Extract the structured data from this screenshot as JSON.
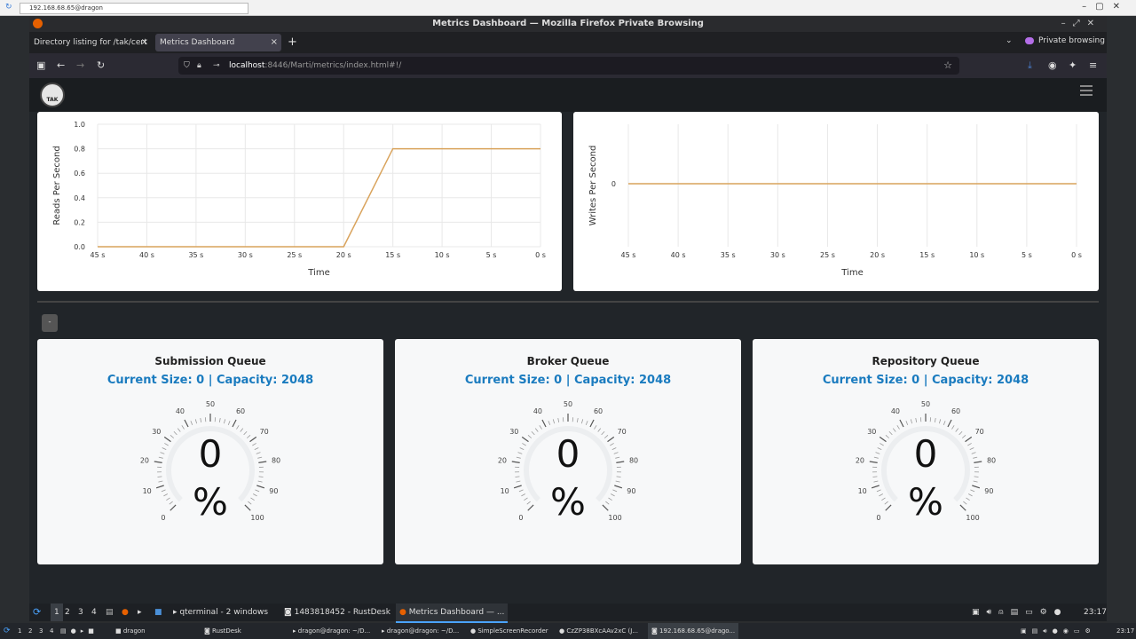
{
  "remote": {
    "address": "192.168.68.65@dragon"
  },
  "window": {
    "title": "Metrics Dashboard — Mozilla Firefox Private Browsing"
  },
  "tabs": [
    {
      "label": "Directory listing for /tak/cert"
    },
    {
      "label": "Metrics Dashboard"
    }
  ],
  "new_tab_icon": "plus-icon",
  "private": {
    "label": "Private browsing"
  },
  "url": {
    "host": "localhost",
    "path": ":8446/Marti/metrics/index.html#!/"
  },
  "logo": {
    "text": "TAK"
  },
  "charts_text": {
    "left_ylabel": "Reads Per Second",
    "right_ylabel": "Writes Per Second",
    "xlabel": "Time"
  },
  "chart_data": [
    {
      "type": "line",
      "ylabel": "Reads Per Second",
      "xlabel": "Time",
      "x_ticks": [
        "45 s",
        "40 s",
        "35 s",
        "30 s",
        "25 s",
        "20 s",
        "15 s",
        "10 s",
        "5 s",
        "0 s"
      ],
      "y_ticks": [
        "0.0",
        "0.2",
        "0.4",
        "0.6",
        "0.8",
        "1.0"
      ],
      "ylim": [
        0,
        1.0
      ],
      "series": [
        {
          "x": [
            45,
            20,
            15,
            0
          ],
          "y": [
            0,
            0,
            0.8,
            0.8
          ],
          "color": "#d9a35c"
        }
      ]
    },
    {
      "type": "line",
      "ylabel": "Writes Per Second",
      "xlabel": "Time",
      "x_ticks": [
        "45 s",
        "40 s",
        "35 s",
        "30 s",
        "25 s",
        "20 s",
        "15 s",
        "10 s",
        "5 s",
        "0 s"
      ],
      "y_ticks": [
        "0"
      ],
      "series": [
        {
          "x": [
            45,
            0
          ],
          "y": [
            0,
            0
          ],
          "color": "#d9a35c"
        }
      ]
    }
  ],
  "collapse_button": {
    "label": "-"
  },
  "queues": [
    {
      "title": "Submission Queue",
      "size_text": "Current Size: 0 | Capacity: 2048",
      "value": "0",
      "unit": "%",
      "percent": 0
    },
    {
      "title": "Broker Queue",
      "size_text": "Current Size: 0 | Capacity: 2048",
      "value": "0",
      "unit": "%",
      "percent": 0
    },
    {
      "title": "Repository Queue",
      "size_text": "Current Size: 0 | Capacity: 2048",
      "value": "0",
      "unit": "%",
      "percent": 0
    }
  ],
  "gauge_labels": [
    "0",
    "10",
    "20",
    "30",
    "40",
    "50",
    "60",
    "70",
    "80",
    "90",
    "100"
  ],
  "taskbar_top": {
    "workspaces": [
      "1",
      "2",
      "3",
      "4"
    ],
    "items": [
      "qterminal - 2 windows",
      "1483818452 - RustDesk",
      "Metrics Dashboard — ..."
    ],
    "clock": "23:17"
  },
  "taskbar_bottom": {
    "workspaces": [
      "1",
      "2",
      "3",
      "4"
    ],
    "items": [
      "dragon",
      "RustDesk",
      "dragon@dragon: ~/D...",
      "dragon@dragon: ~/D...",
      "SimpleScreenRecorder",
      "CzZP38BXcAAv2xC (J...",
      "192.168.68.65@drago..."
    ],
    "clock": "23:17"
  }
}
